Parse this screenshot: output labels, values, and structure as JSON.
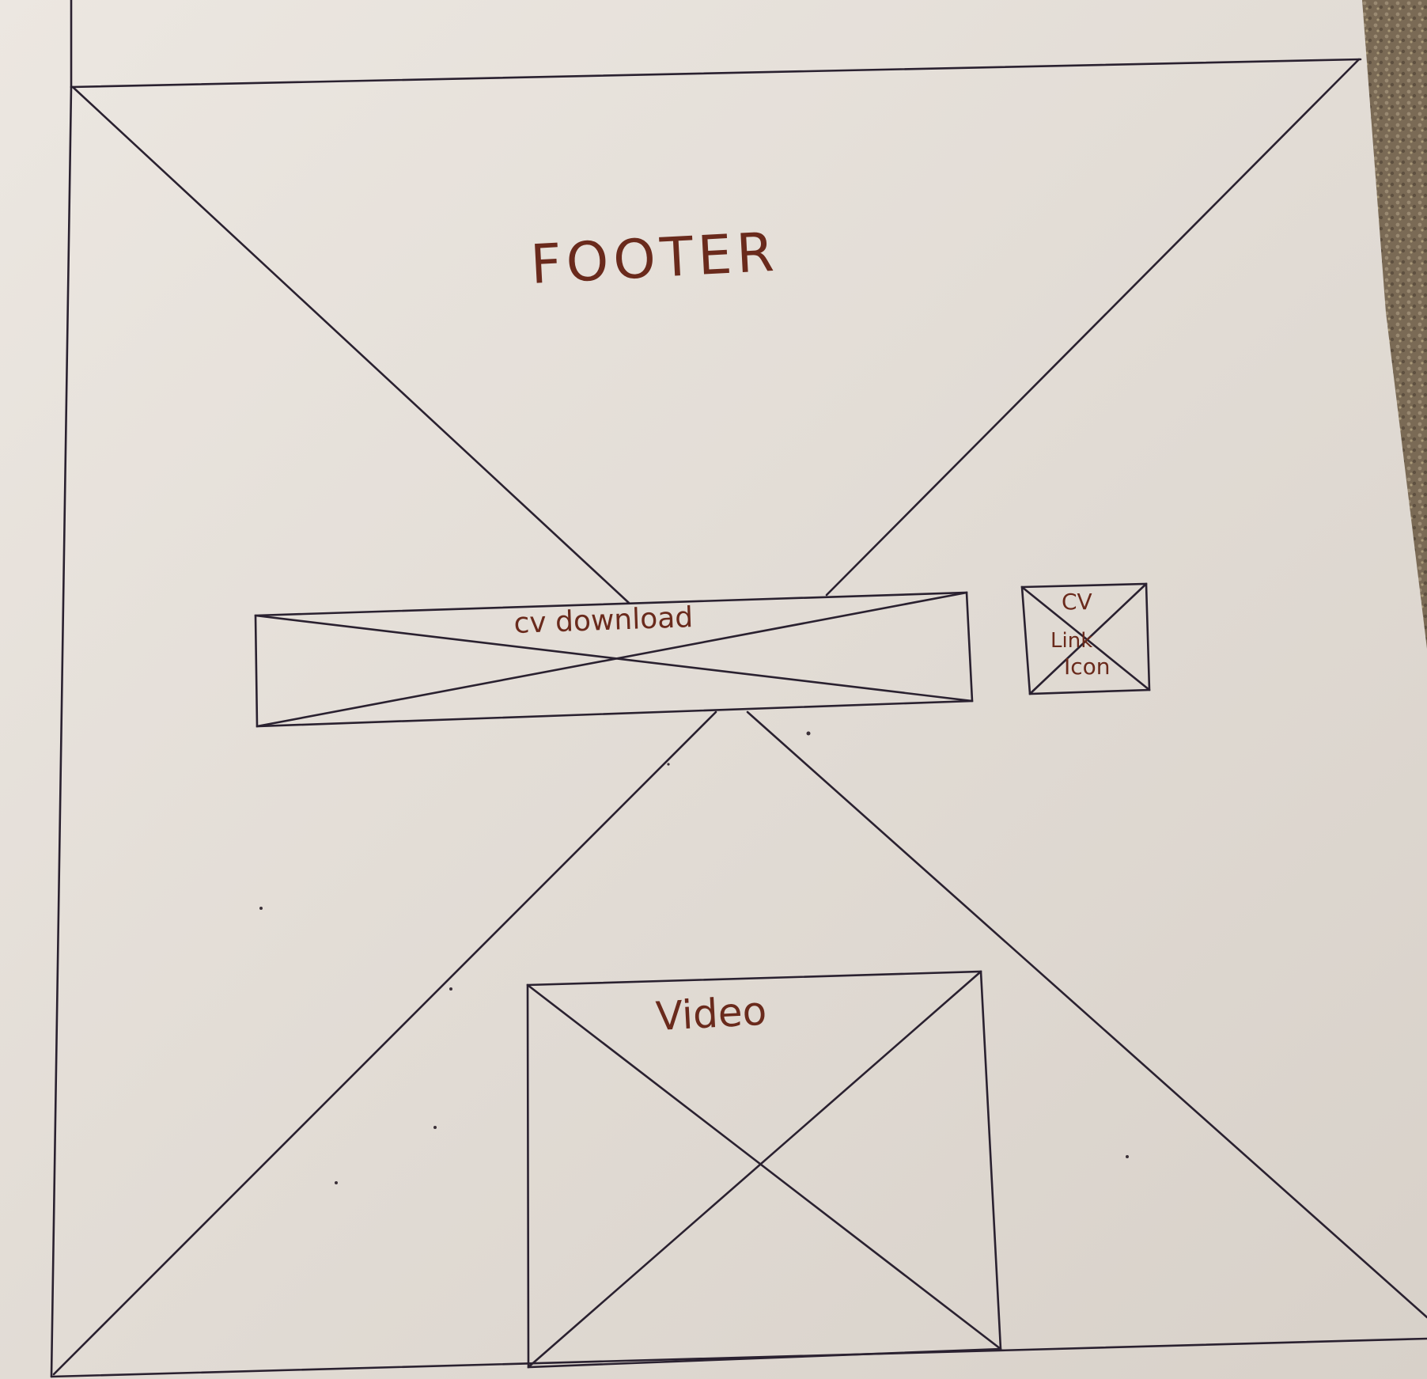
{
  "sketch": {
    "title": "FOOTER",
    "cv_download_label": "cv download",
    "cv_link_icon_label_line1": "CV",
    "cv_link_icon_label_line2": "Link",
    "cv_link_icon_label_line3": "Icon",
    "video_label": "Video"
  },
  "colors": {
    "paper": "#e3ddd6",
    "ink": "#2a2130",
    "marker": "#6a2a1c",
    "carpet": "#7a6a55"
  }
}
